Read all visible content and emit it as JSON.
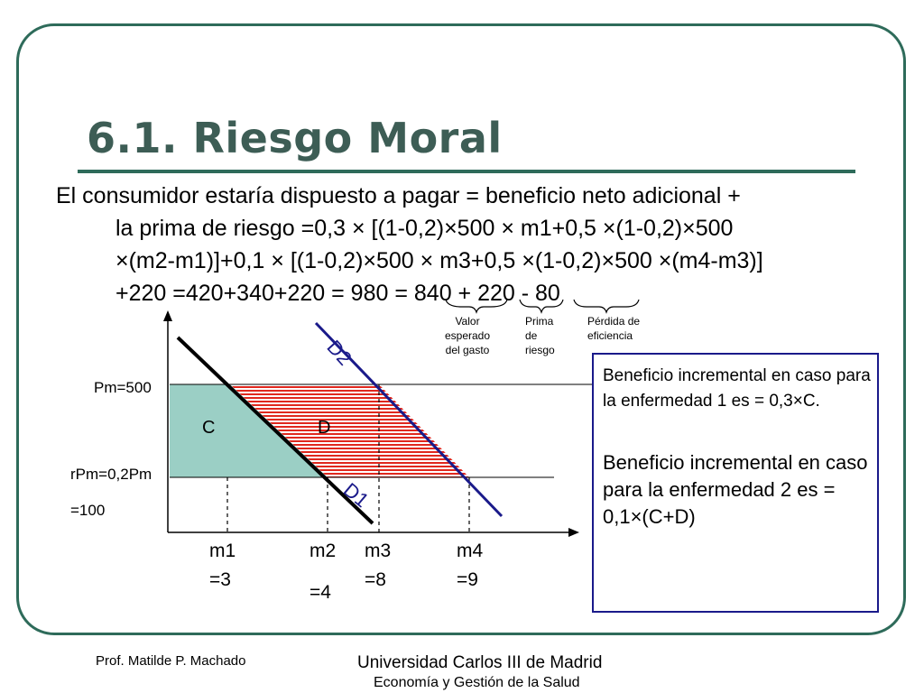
{
  "slide": {
    "title": "6.1. Riesgo Moral",
    "body_lines": [
      "El consumidor estaría dispuesto a pagar = beneficio neto adicional +",
      "la prima de riesgo =0,3 × [(1-0,2)×500 × m1+0,5 ×(1-0,2)×500",
      "×(m2-m1)]+0,1 × [(1-0,2)×500 × m3+0,5 ×(1-0,2)×500 ×(m4-m3)]",
      "+220 =420+340+220 = 980 = 840 + 220 - 80"
    ],
    "braces": [
      {
        "value": "840",
        "label": "Valor\nesperado\ndel gasto"
      },
      {
        "value": "220",
        "label": "Prima\nde\nriesgo"
      },
      {
        "value": "80",
        "label": "Pérdida de\neficiencia"
      }
    ]
  },
  "diagram": {
    "price_labels": {
      "pm": "Pm=500",
      "rpm_line1": "rPm=0,2Pm",
      "rpm_line2": "=100"
    },
    "areas": {
      "c": "C",
      "d": "D"
    },
    "curves": {
      "d1": "D1",
      "d2": "D2"
    },
    "quantities": [
      {
        "name": "m1",
        "value": "=3"
      },
      {
        "name": "m2",
        "value": "=4"
      },
      {
        "name": "m3",
        "value": "=8"
      },
      {
        "name": "m4",
        "value": "=9"
      }
    ],
    "colors": {
      "area_c": "#9bcfc5",
      "area_d_hatch": "#e0281e",
      "d1_line": "#000000",
      "d2_line": "#1a1a8a",
      "frame": "#2e6b5a"
    }
  },
  "box": {
    "paragraph1": "Beneficio incremental en caso para la enfermedad 1 es = 0,3×C.",
    "paragraph2": "Beneficio incremental en caso para la enfermedad 2 es = 0,1×(C+D)"
  },
  "footer": {
    "author": "Prof. Matilde P. Machado",
    "university": "Universidad Carlos III de Madrid",
    "department": "Economía y Gestión de la Salud"
  }
}
